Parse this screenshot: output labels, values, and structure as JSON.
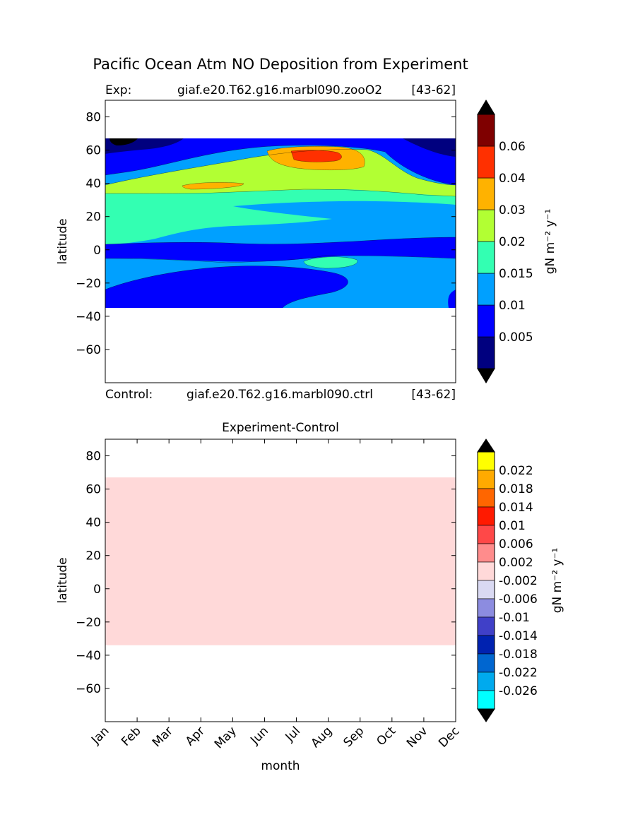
{
  "page": {
    "title": "Pacific Ocean Atm NO Deposition from Experiment"
  },
  "chart_data": [
    {
      "type": "heatmap",
      "exp_label": "Exp:",
      "exp_name": "giaf.e20.T62.g16.marbl090.zooO2",
      "exp_years": "[43-62]",
      "control_label": "Control:",
      "control_name": "giaf.e20.T62.g16.marbl090.ctrl",
      "control_years": "[43-62]",
      "ylabel": "latitude",
      "ylim": [
        -80,
        90
      ],
      "y_ticks": [
        80,
        60,
        40,
        20,
        0,
        -20,
        -40,
        -60
      ],
      "y_tick_labels": [
        "80",
        "60",
        "40",
        "20",
        "0",
        "−20",
        "−40",
        "−60"
      ],
      "data_lat_range": [
        -34,
        67
      ],
      "colorbar": {
        "label": "gN m⁻² y⁻¹",
        "tick_labels": [
          "0.005",
          "0.01",
          "0.015",
          "0.02",
          "0.03",
          "0.04",
          "0.06"
        ],
        "colors": [
          "#00007f",
          "#0000ff",
          "#00a0ff",
          "#33ffb2",
          "#b2ff33",
          "#ffb200",
          "#ff3000",
          "#7f0000"
        ]
      }
    },
    {
      "type": "heatmap",
      "title": "Experiment-Control",
      "xlabel": "month",
      "ylabel": "latitude",
      "ylim": [
        -80,
        90
      ],
      "categories": [
        "Jan",
        "Feb",
        "Mar",
        "Apr",
        "May",
        "Jun",
        "Jul",
        "Aug",
        "Sep",
        "Oct",
        "Nov",
        "Dec"
      ],
      "y_ticks": [
        80,
        60,
        40,
        20,
        0,
        -20,
        -40,
        -60
      ],
      "y_tick_labels": [
        "80",
        "60",
        "40",
        "20",
        "0",
        "−20",
        "−40",
        "−60"
      ],
      "data_lat_range": [
        -34,
        67
      ],
      "uniform_value": 0.0,
      "colorbar": {
        "label": "gN m⁻² y⁻¹",
        "tick_labels": [
          "0.022",
          "0.018",
          "0.014",
          "0.01",
          "0.006",
          "0.002",
          "-0.002",
          "-0.006",
          "-0.01",
          "-0.014",
          "-0.018",
          "-0.022",
          "-0.026"
        ],
        "colors": [
          "#ffff00",
          "#ffaa00",
          "#ff6600",
          "#ff1a00",
          "#ff4848",
          "#ff8c8c",
          "#ffd9d9",
          "#d9d9f2",
          "#8c8ce0",
          "#4040c8",
          "#0022b0",
          "#0066d0",
          "#00aaee",
          "#00ffff"
        ]
      }
    }
  ]
}
